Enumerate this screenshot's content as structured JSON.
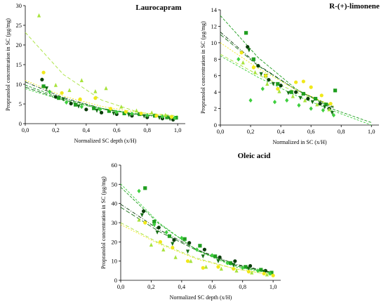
{
  "chart_data": [
    {
      "type": "scatter",
      "title": "Laurocapram",
      "xlabel": "Normalized SC depth (x/H)",
      "ylabel": "Propranolol concentration in SC (µg/mg)",
      "xlim": [
        0,
        1.05
      ],
      "ylim": [
        0,
        30
      ],
      "xticks": [
        "0,0",
        "0,2",
        "0,4",
        "0,6",
        "0,8",
        "1,0"
      ],
      "yticks": [
        "0",
        "5",
        "10",
        "15",
        "20",
        "25",
        "30"
      ],
      "series": [
        {
          "marker": "circle",
          "color": "#0b3d0b",
          "x": [
            0.11,
            0.2,
            0.3,
            0.4,
            0.5,
            0.6,
            0.7,
            0.8,
            0.9,
            0.97
          ],
          "y": [
            11.2,
            6.8,
            5.1,
            3.6,
            2.8,
            2.4,
            2.0,
            1.6,
            1.3,
            1.0
          ],
          "fit": [
            [
              0.0,
              10.6
            ],
            [
              0.25,
              6.6
            ],
            [
              0.5,
              3.9
            ],
            [
              0.75,
              2.2
            ],
            [
              1.0,
              1.4
            ]
          ]
        },
        {
          "marker": "square",
          "color": "#1f9e1f",
          "x": [
            0.12,
            0.22,
            0.33,
            0.45,
            0.55,
            0.65,
            0.75,
            0.85,
            0.93,
            0.99
          ],
          "y": [
            9.5,
            6.5,
            4.8,
            3.9,
            3.2,
            2.6,
            2.4,
            2.0,
            1.6,
            1.5
          ],
          "fit": [
            [
              0.0,
              9.8
            ],
            [
              0.25,
              6.3
            ],
            [
              0.5,
              3.9
            ],
            [
              0.75,
              2.4
            ],
            [
              1.0,
              1.6
            ]
          ]
        },
        {
          "marker": "tri-down",
          "color": "#156e15",
          "x": [
            0.14,
            0.25,
            0.35,
            0.47,
            0.58,
            0.68,
            0.78,
            0.88,
            0.95
          ],
          "y": [
            9.0,
            6.2,
            4.4,
            3.3,
            2.6,
            2.2,
            1.9,
            1.5,
            1.2
          ],
          "fit": [
            [
              0.0,
              9.3
            ],
            [
              0.25,
              6.0
            ],
            [
              0.5,
              3.7
            ],
            [
              0.75,
              2.3
            ],
            [
              1.0,
              1.5
            ]
          ]
        },
        {
          "marker": "diamond",
          "color": "#3ecf3e",
          "x": [
            0.16,
            0.27,
            0.37,
            0.49,
            0.6,
            0.7,
            0.8,
            0.9,
            0.98
          ],
          "y": [
            8.1,
            5.4,
            4.3,
            3.6,
            2.9,
            2.5,
            2.1,
            1.8,
            1.4
          ],
          "fit": [
            [
              0.0,
              8.9
            ],
            [
              0.25,
              5.9
            ],
            [
              0.5,
              3.7
            ],
            [
              0.75,
              2.3
            ],
            [
              1.0,
              1.6
            ]
          ]
        },
        {
          "marker": "triangle",
          "color": "#a8e33c",
          "x": [
            0.09,
            0.2,
            0.29,
            0.37,
            0.46,
            0.53,
            0.63,
            0.73,
            0.83,
            0.92
          ],
          "y": [
            27.5,
            9.8,
            8.5,
            11.0,
            8.2,
            9.0,
            4.3,
            3.3,
            2.8,
            2.2
          ],
          "fit": [
            [
              0.0,
              23.2
            ],
            [
              0.25,
              12.5
            ],
            [
              0.5,
              6.0
            ],
            [
              0.75,
              2.8
            ],
            [
              1.0,
              2.0
            ]
          ]
        },
        {
          "marker": "circle",
          "color": "#f0e81a",
          "x": [
            0.12,
            0.24,
            0.36,
            0.46,
            0.56,
            0.66,
            0.76,
            0.86,
            0.96
          ],
          "y": [
            13.0,
            7.8,
            6.2,
            6.5,
            3.8,
            3.0,
            2.6,
            2.0,
            1.7
          ],
          "fit": [
            [
              0.0,
              11.0
            ],
            [
              0.25,
              7.0
            ],
            [
              0.5,
              4.4
            ],
            [
              0.75,
              2.8
            ],
            [
              1.0,
              1.8
            ]
          ]
        }
      ]
    },
    {
      "type": "scatter",
      "title": "R-(+)-limonene",
      "xlabel": "Normalized in SC (x/H)",
      "ylabel": "Propranolol concentration in SC (µg/mg)",
      "xlim": [
        0,
        1.05
      ],
      "ylim": [
        0,
        14
      ],
      "xticks": [
        "0,0",
        "0,2",
        "0,4",
        "0,6",
        "0,8",
        "1,0"
      ],
      "yticks": [
        "0",
        "2",
        "4",
        "6",
        "8",
        "10",
        "12",
        "14"
      ],
      "series": [
        {
          "marker": "circle",
          "color": "#0b3d0b",
          "x": [
            0.18,
            0.25,
            0.32,
            0.4,
            0.5,
            0.58,
            0.66,
            0.72
          ],
          "y": [
            9.5,
            7.2,
            5.5,
            4.8,
            4.0,
            3.2,
            2.6,
            2.0
          ],
          "fit": [
            [
              0.0,
              11.3
            ],
            [
              0.25,
              7.3
            ],
            [
              0.5,
              4.3
            ],
            [
              0.75,
              2.1
            ]
          ]
        },
        {
          "marker": "square",
          "color": "#1f9e1f",
          "x": [
            0.17,
            0.22,
            0.3,
            0.38,
            0.47,
            0.55,
            0.63,
            0.7,
            0.76
          ],
          "y": [
            11.2,
            8.0,
            6.0,
            5.0,
            4.0,
            3.8,
            3.2,
            2.5,
            4.2
          ],
          "fit": [
            [
              0.0,
              13.3
            ],
            [
              0.25,
              8.2
            ],
            [
              0.5,
              4.4
            ],
            [
              0.75,
              1.9
            ],
            [
              1.0,
              0.3
            ]
          ]
        },
        {
          "marker": "tri-down",
          "color": "#156e15",
          "x": [
            0.19,
            0.27,
            0.35,
            0.45,
            0.53,
            0.61,
            0.69,
            0.74
          ],
          "y": [
            9.1,
            6.2,
            5.0,
            3.9,
            3.3,
            2.8,
            2.2,
            1.5
          ],
          "fit": [
            [
              0.0,
              11.0
            ],
            [
              0.25,
              7.2
            ],
            [
              0.5,
              4.3
            ],
            [
              0.75,
              2.2
            ]
          ]
        },
        {
          "marker": "diamond",
          "color": "#3ecf3e",
          "x": [
            0.12,
            0.2,
            0.28,
            0.36,
            0.44,
            0.52,
            0.6,
            0.68,
            0.75
          ],
          "y": [
            8.0,
            3.0,
            4.4,
            2.8,
            3.0,
            2.4,
            2.0,
            1.8,
            1.2
          ],
          "fit": [
            [
              0.0,
              8.4
            ],
            [
              0.25,
              5.8
            ],
            [
              0.5,
              3.6
            ],
            [
              0.75,
              1.7
            ],
            [
              1.0,
              0.0
            ]
          ]
        },
        {
          "marker": "triangle",
          "color": "#a8e33c",
          "x": [
            0.15,
            0.23,
            0.31,
            0.39,
            0.48,
            0.56,
            0.64,
            0.72
          ],
          "y": [
            7.6,
            6.4,
            5.0,
            4.1,
            3.5,
            3.0,
            2.5,
            1.9
          ],
          "fit": [
            [
              0.0,
              8.6
            ],
            [
              0.25,
              6.1
            ],
            [
              0.5,
              4.0
            ],
            [
              0.75,
              2.3
            ]
          ]
        },
        {
          "marker": "circle",
          "color": "#f0e81a",
          "x": [
            0.14,
            0.22,
            0.3,
            0.38,
            0.5,
            0.55,
            0.6,
            0.67,
            0.73
          ],
          "y": [
            8.8,
            7.0,
            6.0,
            4.4,
            5.2,
            5.3,
            4.6,
            3.6,
            2.6
          ],
          "fit": [
            [
              0.0,
              10.0
            ],
            [
              0.25,
              6.9
            ],
            [
              0.5,
              4.3
            ],
            [
              0.75,
              2.3
            ]
          ]
        }
      ]
    },
    {
      "type": "scatter",
      "title": "Oleic acid",
      "xlabel": "Normalized SC depth (x/H)",
      "ylabel": "Propranolol concentration in SC (µg/mg)",
      "xlim": [
        0,
        1.05
      ],
      "ylim": [
        0,
        60
      ],
      "xticks": [
        "0,0",
        "0,2",
        "0,4",
        "0,6",
        "0,8",
        "1,0"
      ],
      "yticks": [
        "0",
        "10",
        "20",
        "30",
        "40",
        "50",
        "60"
      ],
      "series": [
        {
          "marker": "circle",
          "color": "#0b3d0b",
          "x": [
            0.15,
            0.25,
            0.35,
            0.45,
            0.55,
            0.65,
            0.75,
            0.85,
            0.95
          ],
          "y": [
            36.0,
            27.5,
            21.0,
            19.5,
            16.0,
            12.0,
            10.0,
            7.5,
            5.0
          ],
          "fit": [
            [
              0.0,
              39.6
            ],
            [
              0.25,
              26.5
            ],
            [
              0.5,
              16.0
            ],
            [
              0.75,
              8.5
            ],
            [
              1.0,
              4.0
            ]
          ]
        },
        {
          "marker": "square",
          "color": "#1f9e1f",
          "x": [
            0.16,
            0.22,
            0.32,
            0.42,
            0.52,
            0.62,
            0.72,
            0.82,
            0.92,
            0.99
          ],
          "y": [
            48.0,
            30.5,
            23.0,
            21.5,
            18.0,
            12.5,
            9.0,
            7.0,
            5.5,
            4.0
          ],
          "fit": [
            [
              0.0,
              48.5
            ],
            [
              0.25,
              29.5
            ],
            [
              0.5,
              15.8
            ],
            [
              0.75,
              7.5
            ],
            [
              1.0,
              3.8
            ]
          ]
        },
        {
          "marker": "tri-down",
          "color": "#156e15",
          "x": [
            0.14,
            0.24,
            0.34,
            0.44,
            0.54,
            0.64,
            0.74,
            0.84,
            0.94
          ],
          "y": [
            34.0,
            25.0,
            19.0,
            15.0,
            12.5,
            10.0,
            8.0,
            6.0,
            4.5
          ],
          "fit": [
            [
              0.0,
              38.0
            ],
            [
              0.25,
              25.5
            ],
            [
              0.5,
              15.5
            ],
            [
              0.75,
              8.0
            ],
            [
              1.0,
              3.8
            ]
          ]
        },
        {
          "marker": "diamond",
          "color": "#3ecf3e",
          "x": [
            0.12,
            0.22,
            0.3,
            0.4,
            0.5,
            0.6,
            0.7,
            0.8,
            0.9,
            0.98
          ],
          "y": [
            46.5,
            29.0,
            25.0,
            22.0,
            16.0,
            13.0,
            9.0,
            6.5,
            5.0,
            3.5
          ],
          "fit": [
            [
              0.0,
              50.2
            ],
            [
              0.25,
              30.0
            ],
            [
              0.5,
              15.5
            ],
            [
              0.75,
              7.0
            ],
            [
              1.0,
              3.5
            ]
          ]
        },
        {
          "marker": "triangle",
          "color": "#a8e33c",
          "x": [
            0.12,
            0.2,
            0.28,
            0.36,
            0.46,
            0.56,
            0.66,
            0.76,
            0.86,
            0.96
          ],
          "y": [
            31.5,
            18.5,
            16.0,
            12.0,
            10.0,
            7.0,
            6.0,
            5.0,
            4.0,
            3.0
          ],
          "fit": [
            [
              0.0,
              30.0
            ],
            [
              0.25,
              19.5
            ],
            [
              0.5,
              11.5
            ],
            [
              0.75,
              6.0
            ],
            [
              1.0,
              2.8
            ]
          ]
        },
        {
          "marker": "circle",
          "color": "#f0e81a",
          "x": [
            0.16,
            0.26,
            0.34,
            0.44,
            0.54,
            0.64,
            0.74,
            0.84,
            0.94,
            1.0
          ],
          "y": [
            30.0,
            20.0,
            17.0,
            10.0,
            6.5,
            7.0,
            6.0,
            4.5,
            3.5,
            2.5
          ],
          "fit": [
            [
              0.0,
              29.0
            ],
            [
              0.25,
              19.0
            ],
            [
              0.5,
              11.0
            ],
            [
              0.75,
              6.0
            ],
            [
              1.0,
              2.8
            ]
          ]
        }
      ]
    }
  ]
}
